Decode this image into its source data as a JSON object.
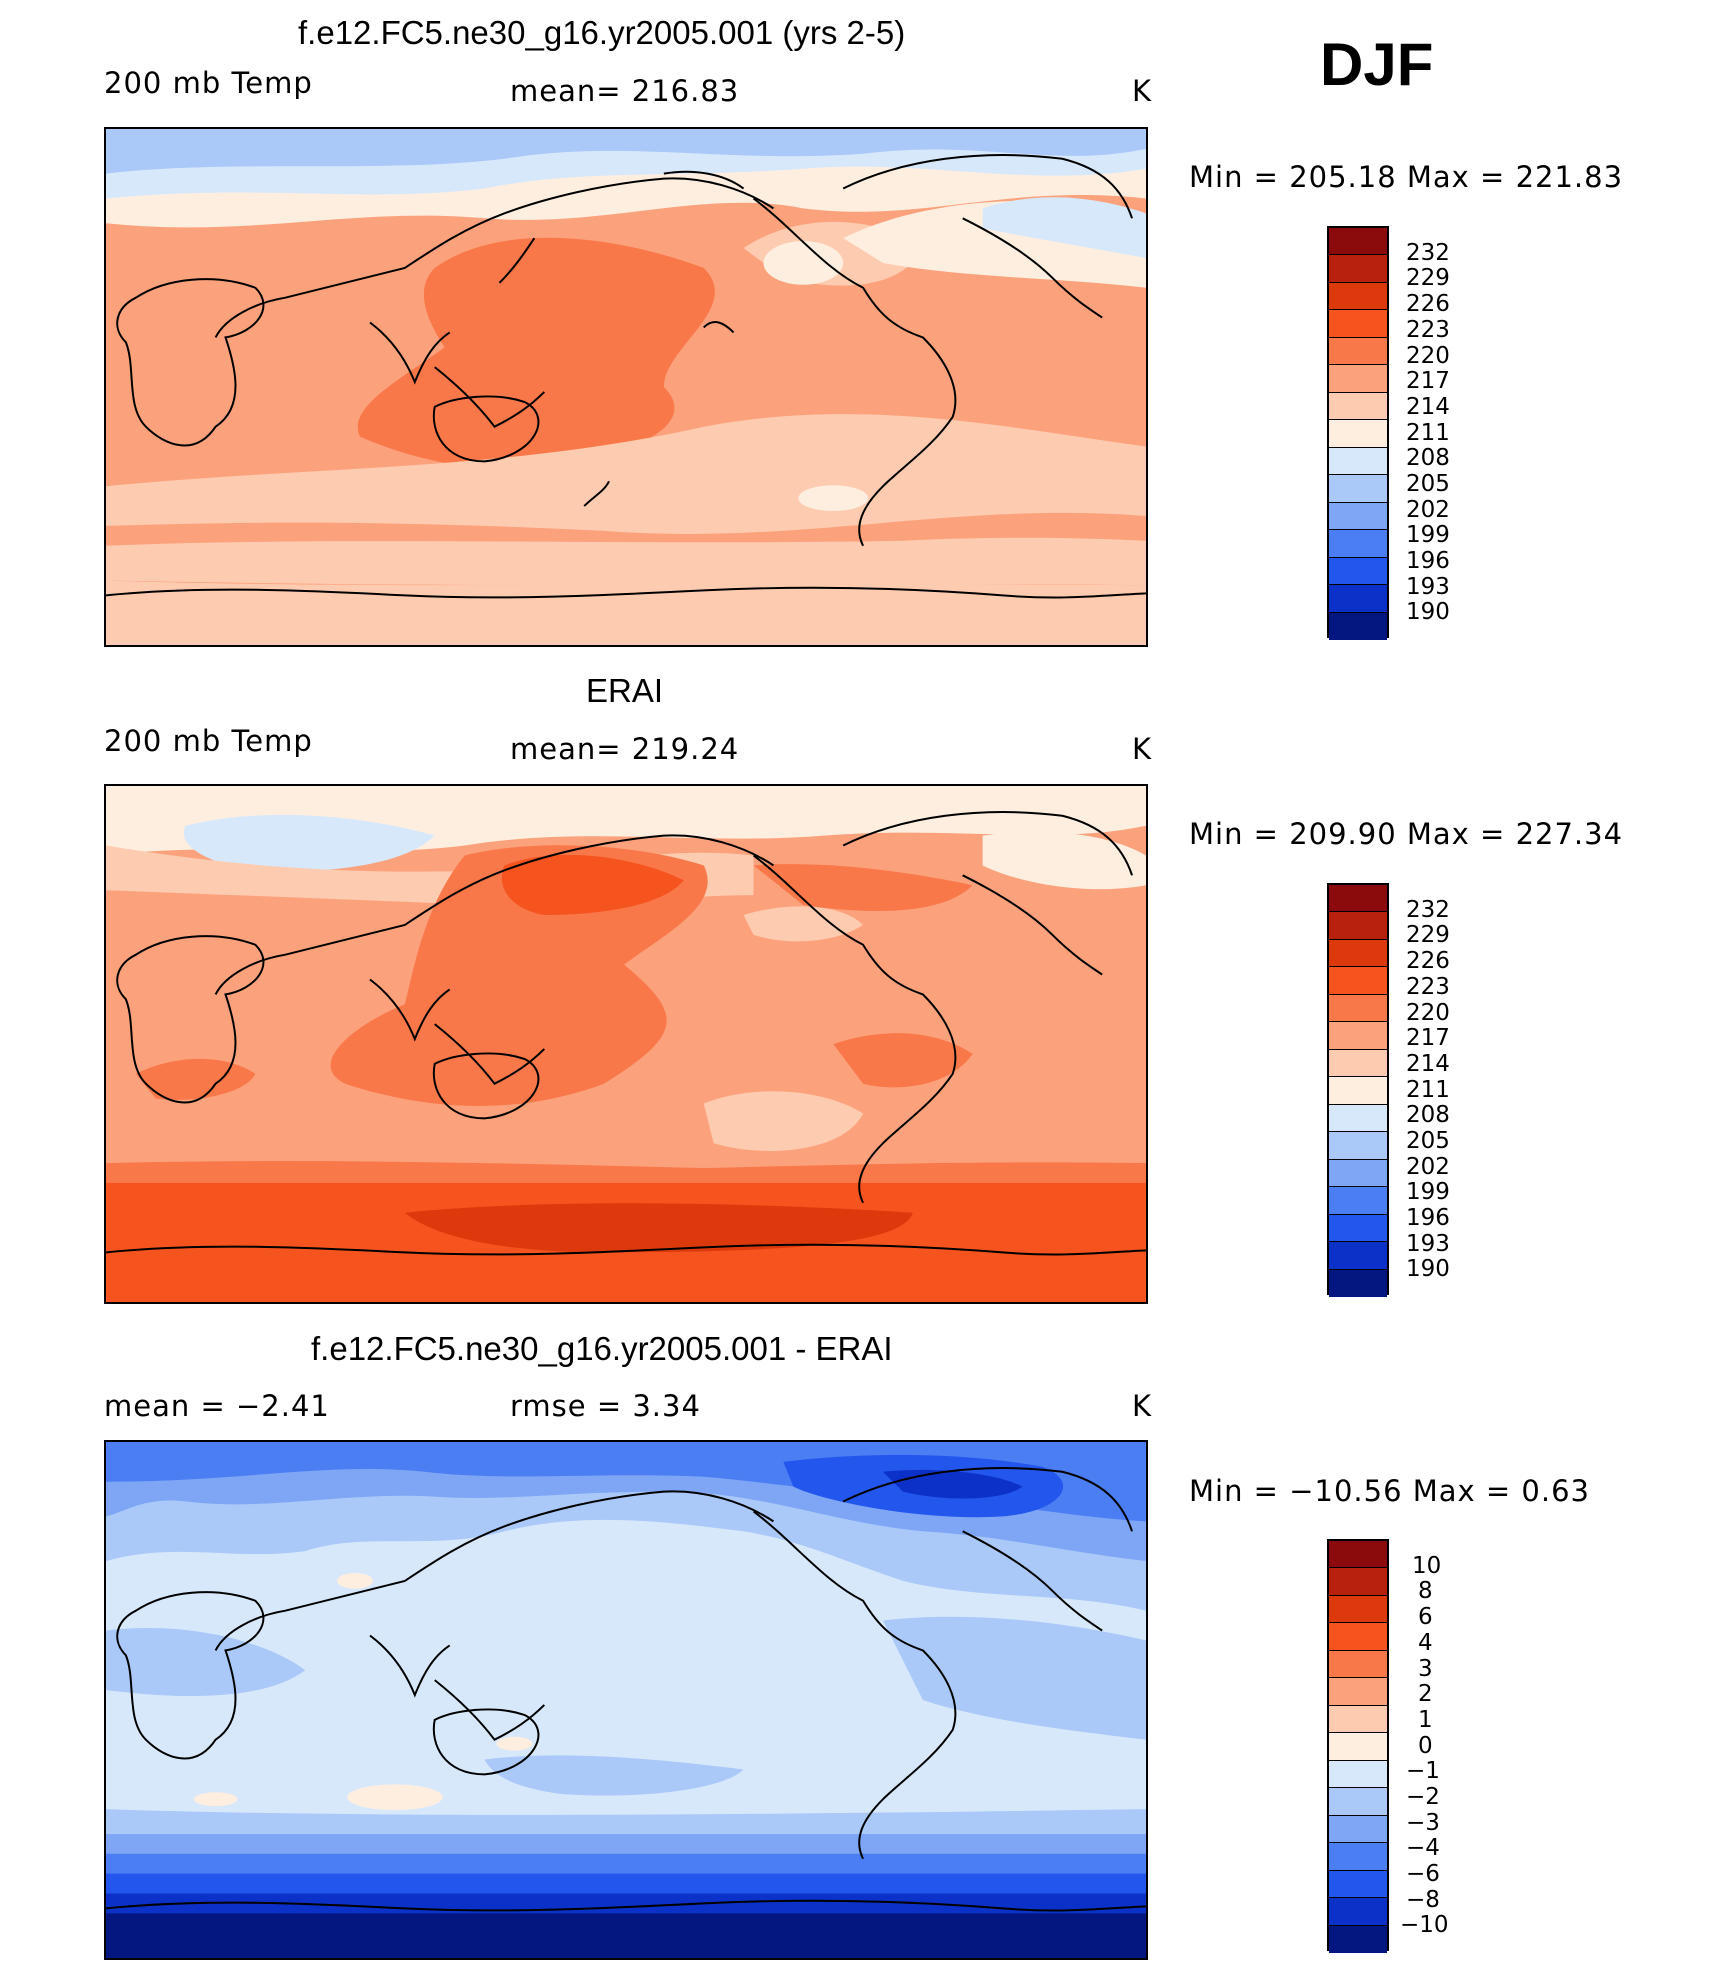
{
  "season_label": "DJF",
  "panels": [
    {
      "title": "f.e12.FC5.ne30_g16.yr2005.001 (yrs 2-5)",
      "left_label": "200 mb Temp",
      "center_label": "mean=  216.83",
      "units": "K",
      "min_max": "Min  =  205.18  Max  =  221.83",
      "levels": [
        "232",
        "229",
        "226",
        "223",
        "220",
        "217",
        "214",
        "211",
        "208",
        "205",
        "202",
        "199",
        "196",
        "193",
        "190"
      ]
    },
    {
      "title": "ERAI",
      "left_label": "200 mb Temp",
      "center_label": "mean=  219.24",
      "units": "K",
      "min_max": "Min  =  209.90  Max  =  227.34",
      "levels": [
        "232",
        "229",
        "226",
        "223",
        "220",
        "217",
        "214",
        "211",
        "208",
        "205",
        "202",
        "199",
        "196",
        "193",
        "190"
      ]
    },
    {
      "title": "f.e12.FC5.ne30_g16.yr2005.001 - ERAI",
      "left_label": "mean  =     −2.41",
      "center_label": "rmse  =      3.34",
      "units": "K",
      "min_max": "Min  =  −10.56  Max  =      0.63",
      "levels": [
        "10",
        "8",
        "6",
        "4",
        "3",
        "2",
        "1",
        "0",
        "−1",
        "−2",
        "−3",
        "−4",
        "−6",
        "−8",
        "−10"
      ]
    }
  ],
  "colorbar_colors": [
    "#8b0a0c",
    "#b8210e",
    "#dc3a0c",
    "#f5541f",
    "#f9784a",
    "#fba27d",
    "#fdcbb0",
    "#fdeee0",
    "#d8e8fb",
    "#aac9f8",
    "#7ea6f5",
    "#4b7ef2",
    "#2356ec",
    "#0c31c8",
    "#04167f"
  ],
  "map_fill_levels": {
    "model": [
      "211",
      "214",
      "217",
      "220"
    ],
    "erai": [
      "214",
      "217",
      "220",
      "223",
      "226"
    ],
    "diff": [
      "-8",
      "-6",
      "-4",
      "-2",
      "-1",
      "0"
    ]
  }
}
